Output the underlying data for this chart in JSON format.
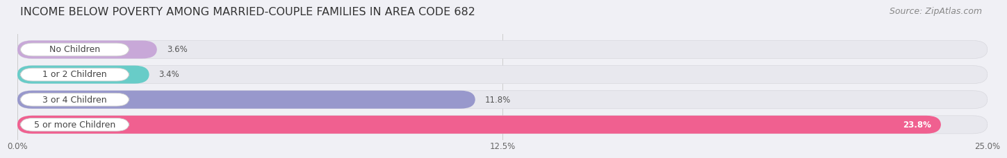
{
  "title": "INCOME BELOW POVERTY AMONG MARRIED-COUPLE FAMILIES IN AREA CODE 682",
  "source": "Source: ZipAtlas.com",
  "categories": [
    "No Children",
    "1 or 2 Children",
    "3 or 4 Children",
    "5 or more Children"
  ],
  "values": [
    3.6,
    3.4,
    11.8,
    23.8
  ],
  "bar_colors": [
    "#c8a8d8",
    "#68ccc8",
    "#9898cc",
    "#f06090"
  ],
  "bar_bg_color": "#e8e8ee",
  "xlim": [
    0,
    25.0
  ],
  "xticks": [
    0.0,
    12.5,
    25.0
  ],
  "xtick_labels": [
    "0.0%",
    "12.5%",
    "25.0%"
  ],
  "background_color": "#f0f0f5",
  "title_fontsize": 11.5,
  "source_fontsize": 9,
  "label_fontsize": 9,
  "value_fontsize": 8.5
}
